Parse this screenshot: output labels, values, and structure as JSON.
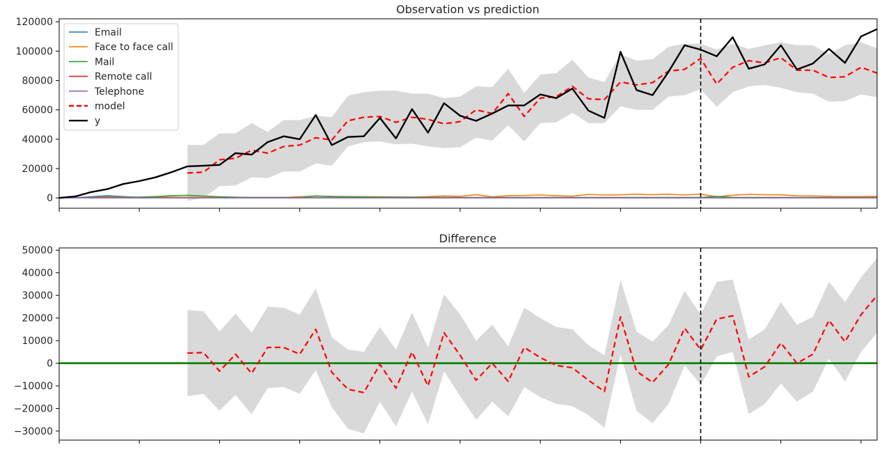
{
  "chart_data": [
    {
      "type": "line",
      "title": "Observation vs prediction",
      "xlabel": "",
      "ylabel": "",
      "xlim": [
        0,
        51
      ],
      "ylim": [
        -7000,
        122000
      ],
      "yticks": [
        0,
        20000,
        40000,
        60000,
        80000,
        100000,
        120000
      ],
      "ytick_labels": [
        "0",
        "20000",
        "40000",
        "60000",
        "80000",
        "100000",
        "120000"
      ],
      "xticks": [
        0,
        5,
        10,
        15,
        20,
        25,
        30,
        35,
        40,
        45,
        50
      ],
      "vline_x": 40,
      "legend_position": "top-left",
      "grid": false,
      "x": [
        0,
        1,
        2,
        3,
        4,
        5,
        6,
        7,
        8,
        9,
        10,
        11,
        12,
        13,
        14,
        15,
        16,
        17,
        18,
        19,
        20,
        21,
        22,
        23,
        24,
        25,
        26,
        27,
        28,
        29,
        30,
        31,
        32,
        33,
        34,
        35,
        36,
        37,
        38,
        39,
        40,
        41,
        42,
        43,
        44,
        45,
        46,
        47,
        48,
        49,
        50,
        51
      ],
      "series": [
        {
          "name": "Email",
          "color": "#1f77b4",
          "style": "solid",
          "values": [
            0,
            200,
            800,
            1500,
            900,
            400,
            300,
            200,
            300,
            200,
            100,
            100,
            100,
            100,
            100,
            100,
            100,
            100,
            100,
            100,
            100,
            100,
            100,
            100,
            100,
            100,
            100,
            100,
            100,
            100,
            100,
            100,
            100,
            100,
            100,
            100,
            100,
            100,
            100,
            100,
            100,
            100,
            100,
            100,
            100,
            100,
            100,
            100,
            100,
            100,
            100,
            100
          ]
        },
        {
          "name": "Face to face call",
          "color": "#ff7f0e",
          "style": "solid",
          "values": [
            0,
            100,
            400,
            800,
            600,
            500,
            500,
            500,
            400,
            400,
            400,
            300,
            300,
            300,
            300,
            800,
            1200,
            1000,
            900,
            800,
            800,
            700,
            600,
            900,
            1400,
            1100,
            2200,
            800,
            1500,
            1700,
            2000,
            1500,
            1200,
            2400,
            2000,
            2100,
            2600,
            2200,
            2600,
            2000,
            2600,
            800,
            1800,
            2500,
            2200,
            2100,
            1500,
            1400,
            1100,
            900,
            900,
            1000
          ]
        },
        {
          "name": "Mail",
          "color": "#2ca02c",
          "style": "solid",
          "values": [
            0,
            100,
            300,
            300,
            400,
            600,
            900,
            1500,
            1800,
            1300,
            800,
            500,
            300,
            300,
            300,
            300,
            1400,
            900,
            800,
            700,
            600,
            500,
            500,
            400,
            400,
            300,
            300,
            300,
            300,
            300,
            300,
            300,
            300,
            300,
            300,
            300,
            300,
            300,
            300,
            300,
            300,
            1000,
            300,
            300,
            300,
            300,
            300,
            300,
            300,
            300,
            300,
            300
          ]
        },
        {
          "name": "Remote call",
          "color": "#d62728",
          "style": "solid",
          "values": [
            0,
            0,
            0,
            0,
            0,
            0,
            0,
            0,
            0,
            0,
            0,
            0,
            0,
            0,
            0,
            0,
            0,
            0,
            0,
            0,
            0,
            0,
            0,
            0,
            0,
            0,
            0,
            0,
            0,
            0,
            0,
            0,
            0,
            0,
            0,
            0,
            0,
            0,
            0,
            0,
            0,
            0,
            0,
            0,
            0,
            0,
            0,
            0,
            0,
            0,
            0,
            0
          ]
        },
        {
          "name": "Telephone",
          "color": "#9467bd",
          "style": "solid",
          "values": [
            0,
            0,
            0,
            0,
            0,
            0,
            0,
            0,
            0,
            0,
            0,
            0,
            0,
            0,
            0,
            0,
            0,
            0,
            0,
            0,
            0,
            0,
            0,
            0,
            0,
            0,
            0,
            0,
            0,
            0,
            0,
            0,
            0,
            0,
            0,
            0,
            0,
            0,
            0,
            0,
            0,
            0,
            0,
            0,
            0,
            0,
            0,
            0,
            0,
            0,
            0,
            0
          ]
        },
        {
          "name": "model",
          "color": "#ff0000",
          "style": "dashed",
          "values": [
            null,
            null,
            null,
            null,
            null,
            null,
            null,
            null,
            17000,
            17500,
            26000,
            27000,
            32500,
            30500,
            35000,
            36000,
            41000,
            39500,
            52500,
            55000,
            55500,
            51500,
            55000,
            53500,
            50500,
            52000,
            60000,
            57500,
            71000,
            55500,
            68000,
            69000,
            76000,
            67500,
            67000,
            79000,
            77000,
            78500,
            86500,
            87500,
            95000,
            77500,
            89000,
            93500,
            92000,
            95500,
            87000,
            87000,
            82000,
            82500,
            89000,
            85000
          ]
        },
        {
          "name": "y",
          "color": "#000000",
          "style": "solid",
          "values": [
            0,
            1000,
            4000,
            6000,
            9500,
            11500,
            14000,
            17500,
            21500,
            22000,
            22500,
            30500,
            29500,
            38000,
            42000,
            40000,
            56500,
            36000,
            41500,
            42000,
            54500,
            40500,
            60500,
            44500,
            64500,
            56000,
            52500,
            57500,
            63000,
            63000,
            70500,
            68000,
            74500,
            59500,
            54500,
            99500,
            73500,
            70000,
            86000,
            104000,
            101000,
            96500,
            109500,
            88000,
            91000,
            104000,
            87500,
            91500,
            101500,
            92000,
            110000,
            115000
          ]
        }
      ],
      "band": {
        "color": "#d9d9d9",
        "x_start": 8,
        "upper": [
          36000,
          36000,
          44000,
          44000,
          51000,
          45000,
          53000,
          53000,
          56000,
          55000,
          69500,
          72000,
          73000,
          73000,
          71000,
          71000,
          68000,
          69000,
          76000,
          75500,
          88000,
          71500,
          84000,
          85000,
          94000,
          82000,
          79000,
          98000,
          93500,
          94500,
          103000,
          105000,
          105000,
          101000,
          105000,
          101500,
          104000,
          106000,
          104000,
          104000,
          98000,
          104000,
          106000,
          102000
        ],
        "lower": [
          -2000,
          0,
          8000,
          8500,
          14000,
          13500,
          18000,
          18000,
          23500,
          22000,
          35000,
          38000,
          38500,
          36500,
          37000,
          35000,
          34000,
          34500,
          41000,
          39000,
          49500,
          38500,
          51000,
          51500,
          58000,
          51000,
          51000,
          62500,
          60000,
          60000,
          69000,
          70000,
          74000,
          62000,
          72000,
          76000,
          77000,
          75000,
          72000,
          71000,
          65500,
          66000,
          70500,
          68500
        ]
      }
    },
    {
      "type": "line",
      "title": "Difference",
      "xlabel": "",
      "ylabel": "",
      "xlim": [
        0,
        51
      ],
      "ylim": [
        -34000,
        51000
      ],
      "yticks": [
        -30000,
        -20000,
        -10000,
        0,
        10000,
        20000,
        30000,
        40000,
        50000
      ],
      "ytick_labels": [
        "−30000",
        "−20000",
        "−10000",
        "0",
        "10000",
        "20000",
        "30000",
        "40000",
        "50000"
      ],
      "xticks": [
        0,
        5,
        10,
        15,
        20,
        25,
        30,
        35,
        40,
        45,
        50
      ],
      "vline_x": 40,
      "zero_line_color": "#008000",
      "grid": false,
      "series": [
        {
          "name": "difference",
          "color": "#ff0000",
          "style": "dashed",
          "x_start": 8,
          "values": [
            4500,
            4700,
            -3500,
            4000,
            -4500,
            7000,
            7000,
            4000,
            15000,
            -4000,
            -11500,
            -13000,
            -500,
            -11000,
            5000,
            -10000,
            13500,
            3500,
            -7500,
            0,
            -8000,
            7000,
            2500,
            -1000,
            -2000,
            -7500,
            -12500,
            20500,
            -3500,
            -8500,
            -500,
            15500,
            6000,
            19500,
            21000,
            -6000,
            -1500,
            9000,
            0,
            4000,
            19000,
            9500,
            21500,
            30000
          ]
        }
      ],
      "band": {
        "color": "#d9d9d9",
        "x_start": 8,
        "upper": [
          23500,
          23000,
          14000,
          22000,
          13500,
          25000,
          24500,
          21500,
          33000,
          11500,
          6000,
          5000,
          16000,
          6000,
          22500,
          7000,
          30500,
          21500,
          10000,
          17000,
          7500,
          24500,
          20000,
          16000,
          15000,
          8000,
          3500,
          37000,
          14000,
          9500,
          17000,
          32000,
          21500,
          36000,
          37000,
          10500,
          15000,
          27000,
          17000,
          20500,
          36000,
          27000,
          38000,
          46500
        ]
      }
    }
  ]
}
